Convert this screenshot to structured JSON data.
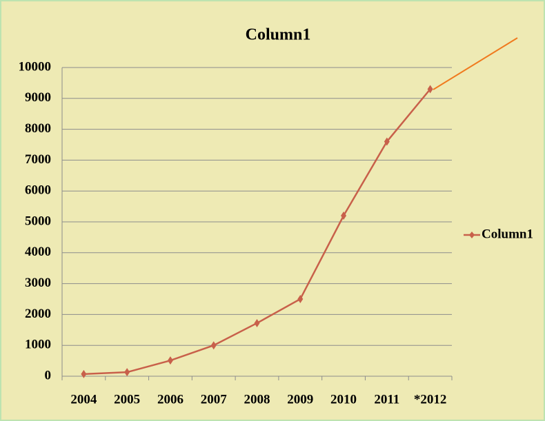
{
  "chart_data": {
    "type": "line",
    "title": "Column1",
    "categories": [
      "2004",
      "2005",
      "2006",
      "2007",
      "2008",
      "2009",
      "2010",
      "2011",
      "*2012"
    ],
    "series": [
      {
        "name": "Column1",
        "color": "#c8604a",
        "values": [
          70,
          130,
          510,
          1000,
          1720,
          2500,
          5200,
          7600,
          9300
        ]
      }
    ],
    "ylim": [
      0,
      10000
    ],
    "yticks": [
      0,
      1000,
      2000,
      3000,
      4000,
      5000,
      6000,
      7000,
      8000,
      9000,
      10000
    ],
    "grid": true,
    "legend": "right"
  }
}
